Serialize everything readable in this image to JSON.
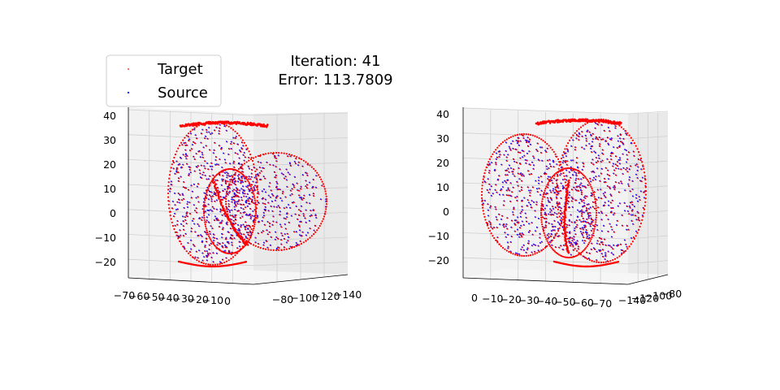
{
  "chart_data": {
    "type": "scatter",
    "title_line1": "Iteration: 41",
    "title_line2": "Error: 113.7809",
    "legend": [
      {
        "name": "Target",
        "color": "#ff0000"
      },
      {
        "name": "Source",
        "color": "#0000ff"
      }
    ],
    "subplots": [
      {
        "view": "left",
        "z_ticks": [
          "40",
          "30",
          "20",
          "10",
          "0",
          "−10",
          "−20"
        ],
        "axis_a_ticks": [
          "−70",
          "−60",
          "−50",
          "−40",
          "−30",
          "−20",
          "−10",
          "0"
        ],
        "axis_b_ticks": [
          "−80",
          "−100",
          "−120",
          "−140"
        ]
      },
      {
        "view": "right",
        "z_ticks": [
          "40",
          "30",
          "20",
          "10",
          "0",
          "−10",
          "−20"
        ],
        "axis_a_ticks": [
          "0",
          "−10",
          "−20",
          "−30",
          "−40",
          "−50",
          "−60",
          "−70"
        ],
        "axis_b_ticks": [
          "−140",
          "−120",
          "−100",
          "−80"
        ]
      }
    ],
    "grid": true
  }
}
